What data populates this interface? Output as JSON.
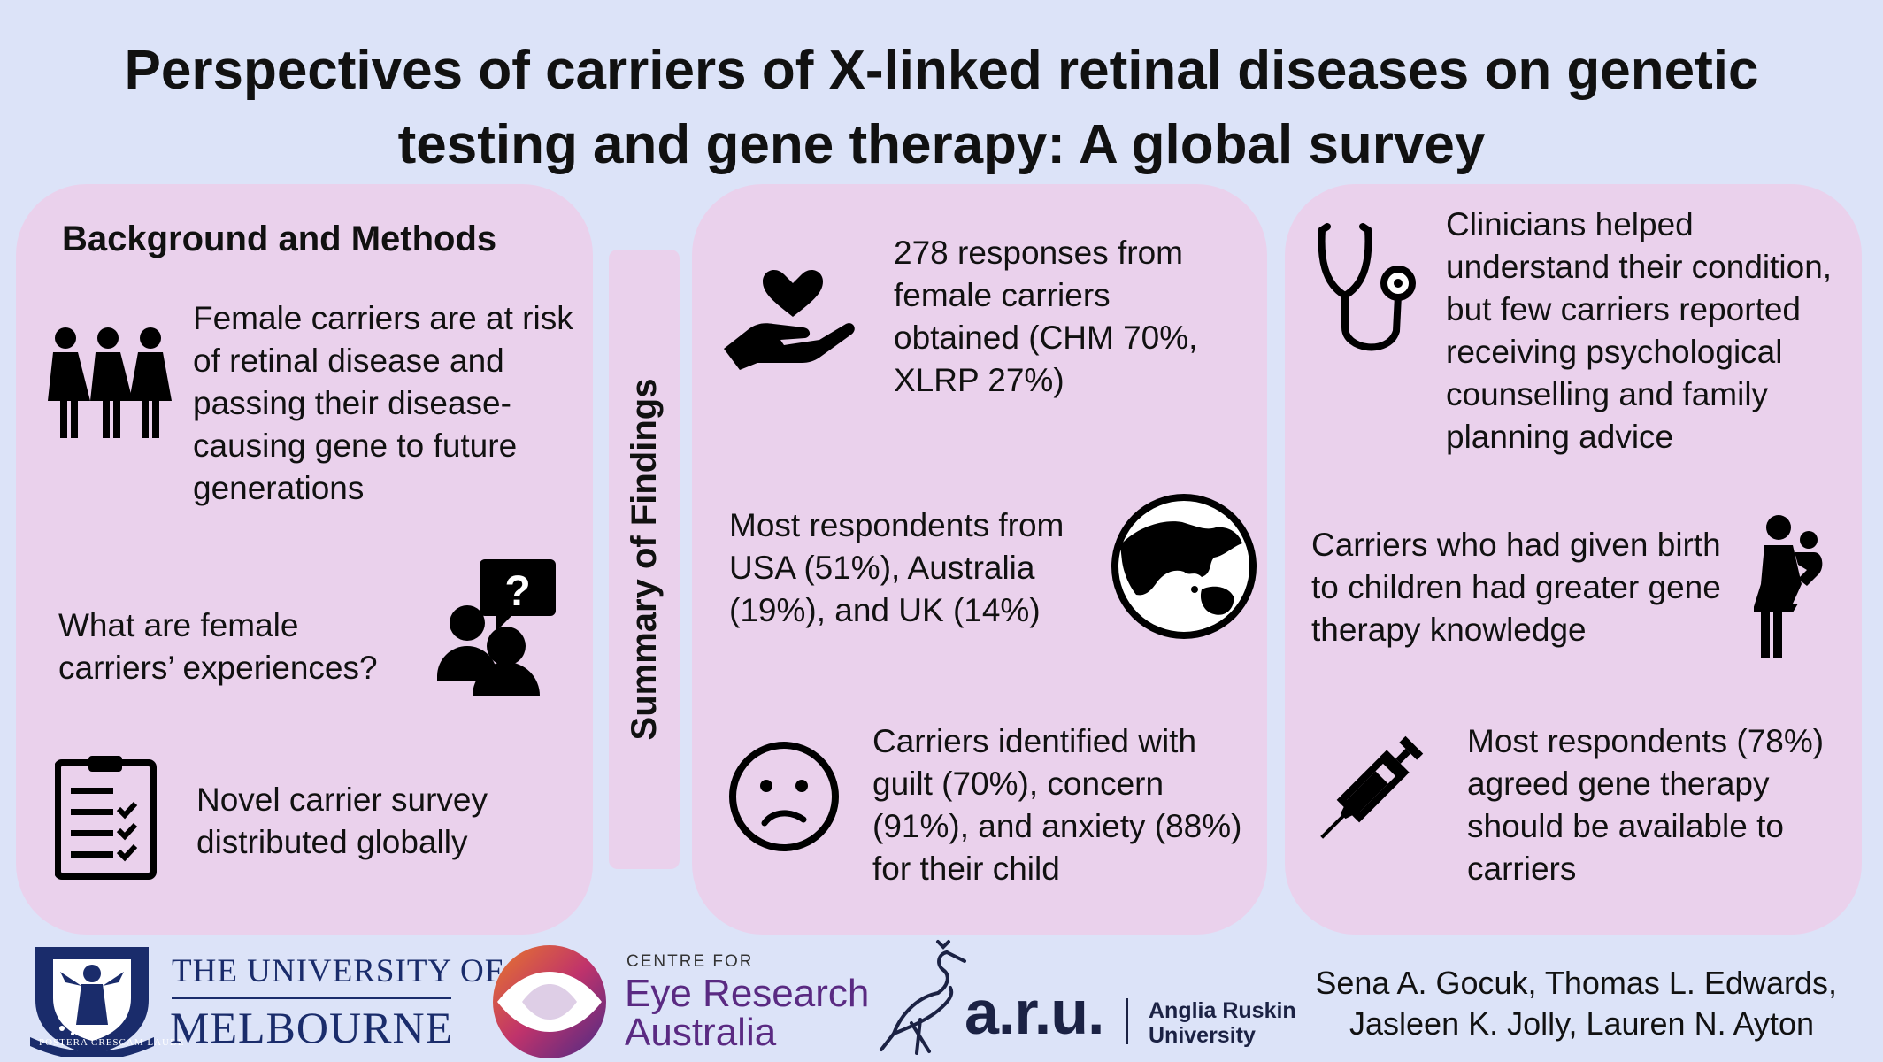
{
  "title": {
    "line1": "Perspectives of carriers of X-linked retinal diseases on genetic",
    "line2": "testing and gene therapy: A global survey"
  },
  "background": {
    "heading": "Background and Methods",
    "items": [
      {
        "text": "Female carriers are at risk of retinal disease and passing their disease-causing gene to future generations",
        "icon": "women-group-icon"
      },
      {
        "text": "What are female carriers’ experiences?",
        "icon": "question-people-icon"
      },
      {
        "text": "Novel carrier survey distributed globally",
        "icon": "clipboard-checklist-icon"
      }
    ]
  },
  "summary_label": "Summary of Findings",
  "findings_middle": [
    {
      "text": "278 responses from female carriers obtained (CHM 70%, XLRP 27%)",
      "icon": "heart-hand-icon"
    },
    {
      "text": "Most respondents from USA (51%), Australia (19%), and UK (14%)",
      "icon": "globe-icon"
    },
    {
      "text": "Carriers identified with guilt (70%), concern (91%), and anxiety (88%) for their child",
      "icon": "worried-face-icon"
    }
  ],
  "findings_right": [
    {
      "text": "Clinicians helped understand their condition, but few carriers reported receiving psychological counselling and family planning advice",
      "icon": "stethoscope-icon"
    },
    {
      "text": "Carriers who had given birth to children had greater gene therapy knowledge",
      "icon": "mother-child-icon"
    },
    {
      "text": "Most respondents (78%) agreed gene therapy should be available to carriers",
      "icon": "syringe-icon"
    }
  ],
  "logos": {
    "melbourne": {
      "line1": "THE UNIVERSITY OF",
      "line2": "MELBOURNE",
      "motto": "POSTERA CRESCAM LAUDE",
      "color": "#1a2c6b"
    },
    "cera": {
      "small": "CENTRE FOR",
      "line1": "Eye Research",
      "line2": "Australia",
      "color": "#5a2a82"
    },
    "aru": {
      "mark": "a.r.u.",
      "line1": "Anglia Ruskin",
      "line2": "University",
      "color": "#1b2244"
    }
  },
  "authors": {
    "line1": "Sena A. Gocuk, Thomas L. Edwards,",
    "line2": "Jasleen K. Jolly, Lauren N. Ayton"
  },
  "colors": {
    "background": "#dce3f8",
    "panel": "#ead1ec",
    "text": "#111111"
  }
}
